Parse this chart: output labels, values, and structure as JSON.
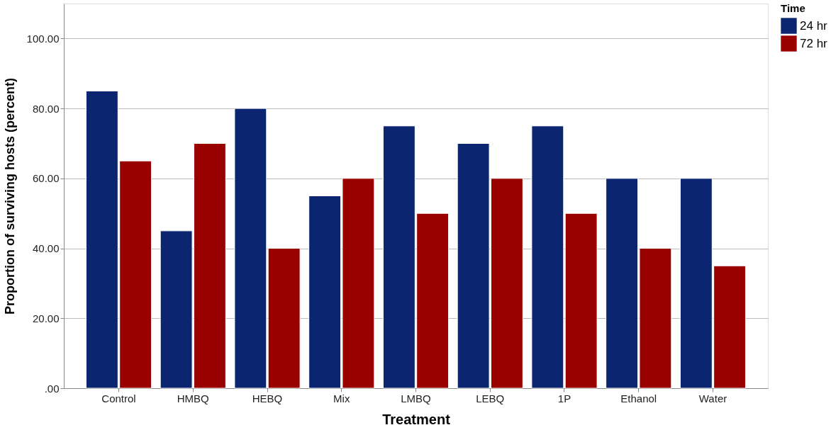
{
  "chart_data": {
    "type": "bar",
    "xlabel": "Treatment",
    "ylabel": "Proportion of surviving hosts (percent)",
    "legend_title": "Time",
    "categories": [
      "Control",
      "HMBQ",
      "HEBQ",
      "Mix",
      "LMBQ",
      "LEBQ",
      "1P",
      "Ethanol",
      "Water"
    ],
    "series": [
      {
        "name": "24 hr",
        "color": "#0b2570",
        "values": [
          85,
          45,
          80,
          55,
          75,
          70,
          75,
          60,
          60
        ]
      },
      {
        "name": "72 hr",
        "color": "#990000",
        "values": [
          65,
          70,
          40,
          60,
          50,
          60,
          50,
          40,
          35
        ]
      }
    ],
    "ylim": [
      0,
      110
    ],
    "yticks": [
      {
        "value": 0,
        "label": ".00"
      },
      {
        "value": 20,
        "label": "20.00"
      },
      {
        "value": 40,
        "label": "40.00"
      },
      {
        "value": 60,
        "label": "60.00"
      },
      {
        "value": 80,
        "label": "80.00"
      },
      {
        "value": 100,
        "label": "100.00"
      }
    ],
    "grid": "y",
    "legend": "right"
  }
}
